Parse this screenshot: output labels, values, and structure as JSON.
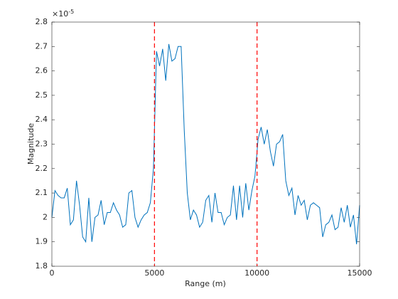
{
  "chart_data": {
    "type": "line",
    "xlabel": "Range (m)",
    "ylabel": "Magnitude",
    "y_multiplier_base": "×10",
    "y_multiplier_exponent": "-5",
    "xlim": [
      0,
      15000
    ],
    "xticks": [
      0,
      5000,
      10000,
      15000
    ],
    "ylim": [
      1.8,
      2.8
    ],
    "yticks": [
      1.8,
      1.9,
      2,
      2.1,
      2.2,
      2.3,
      2.4,
      2.5,
      2.6,
      2.7,
      2.8
    ],
    "grid": false,
    "vlines": [
      5000,
      10000
    ],
    "vline_color": "#ff0000",
    "series": [
      {
        "color": "#0072bd",
        "x": [
          0,
          150,
          300,
          450,
          600,
          750,
          900,
          1050,
          1200,
          1350,
          1500,
          1650,
          1800,
          1950,
          2100,
          2250,
          2400,
          2550,
          2700,
          2850,
          3000,
          3150,
          3300,
          3450,
          3600,
          3750,
          3900,
          4050,
          4200,
          4350,
          4500,
          4650,
          4800,
          4950,
          5100,
          5250,
          5400,
          5550,
          5700,
          5850,
          6000,
          6150,
          6300,
          6450,
          6600,
          6750,
          6900,
          7050,
          7200,
          7350,
          7500,
          7650,
          7800,
          7950,
          8100,
          8250,
          8400,
          8550,
          8700,
          8850,
          9000,
          9150,
          9300,
          9450,
          9600,
          9750,
          9900,
          10050,
          10200,
          10350,
          10500,
          10650,
          10800,
          10950,
          11100,
          11250,
          11400,
          11550,
          11700,
          11850,
          12000,
          12150,
          12300,
          12450,
          12600,
          12750,
          12900,
          13050,
          13200,
          13350,
          13500,
          13650,
          13800,
          13950,
          14100,
          14250,
          14400,
          14550,
          14700,
          14850,
          15000
        ],
        "values": [
          2.0,
          2.11,
          2.09,
          2.08,
          2.08,
          2.12,
          1.97,
          1.99,
          2.15,
          2.05,
          1.92,
          1.9,
          2.08,
          1.9,
          2.0,
          2.01,
          2.07,
          1.97,
          2.02,
          2.02,
          2.06,
          2.03,
          2.01,
          1.96,
          1.97,
          2.1,
          2.11,
          2.0,
          1.96,
          1.99,
          2.01,
          2.02,
          2.06,
          2.2,
          2.68,
          2.62,
          2.69,
          2.56,
          2.71,
          2.64,
          2.65,
          2.7,
          2.7,
          2.36,
          2.1,
          1.99,
          2.03,
          2.01,
          1.96,
          1.98,
          2.07,
          2.09,
          1.98,
          2.1,
          2.02,
          2.02,
          1.97,
          2.0,
          2.01,
          2.13,
          1.99,
          2.13,
          2.0,
          2.14,
          2.03,
          2.11,
          2.17,
          2.32,
          2.37,
          2.3,
          2.36,
          2.27,
          2.21,
          2.3,
          2.31,
          2.34,
          2.15,
          2.09,
          2.12,
          2.01,
          2.09,
          2.05,
          2.07,
          1.99,
          2.05,
          2.06,
          2.05,
          2.04,
          1.92,
          1.97,
          1.98,
          2.01,
          1.95,
          1.96,
          2.04,
          1.98,
          2.05,
          1.96,
          2.01,
          1.89,
          2.05
        ]
      }
    ]
  }
}
